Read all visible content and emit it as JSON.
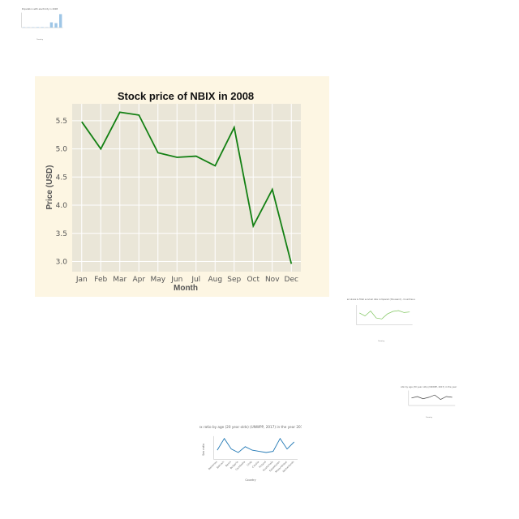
{
  "main_chart": {
    "chart_data": {
      "type": "line",
      "title": "Stock price of NBIX in 2008",
      "xlabel": "Month",
      "ylabel": "Price (USD)",
      "categories": [
        "Jan",
        "Feb",
        "Mar",
        "Apr",
        "May",
        "Jun",
        "Jul",
        "Aug",
        "Sep",
        "Oct",
        "Nov",
        "Dec"
      ],
      "series": [
        {
          "values": [
            5.48,
            5.0,
            5.65,
            5.6,
            4.93,
            4.85,
            4.87,
            4.7,
            5.38,
            3.63,
            4.28,
            2.96
          ]
        }
      ],
      "yticks": [
        3.0,
        3.5,
        4.0,
        4.5,
        5.0,
        5.5
      ],
      "ytick_labels": [
        "3.0",
        "3.5",
        "4.0",
        "4.5",
        "5.0",
        "5.5"
      ],
      "ylim": [
        2.82,
        5.8
      ],
      "grid": true,
      "colors": {
        "line": "#138013",
        "plot_bg": "#eae6d8",
        "panel_bg": "#fdf6e3",
        "grid": "#ffffff"
      }
    }
  },
  "thumbnails": [
    {
      "id": "thumb-1",
      "chart_data": {
        "type": "bar",
        "title": "Population with electricity in 2008",
        "xlabel": "Country",
        "categories": [
          "a",
          "b",
          "c",
          "d",
          "e",
          "f",
          "g",
          "h",
          "i"
        ],
        "values": [
          0.02,
          0.02,
          0.02,
          0.03,
          0.03,
          0.02,
          0.35,
          0.3,
          0.9
        ],
        "ylim": [
          0,
          1
        ],
        "colors": {
          "bar": "#9ec6e6"
        }
      }
    },
    {
      "id": "thumb-2",
      "chart_data": {
        "type": "line",
        "title": "Between 1995 - 2009 Tuberculosis & Total survival rate compared (thousand) - Countries specified on the year 2009",
        "xlabel": "Country",
        "categories": [
          "a",
          "b",
          "c",
          "d",
          "e",
          "f",
          "g",
          "h",
          "i",
          "j"
        ],
        "values": [
          0.6,
          0.45,
          0.7,
          0.35,
          0.3,
          0.55,
          0.68,
          0.72,
          0.62,
          0.65
        ],
        "ylim": [
          0,
          1
        ],
        "colors": {
          "line": "#7cc45a"
        }
      }
    },
    {
      "id": "thumb-3",
      "chart_data": {
        "type": "line",
        "title": "Sex ratio by age (30 year olds) (UNWPP, 2017) in the year 1990",
        "xlabel": "Country",
        "categories": [
          "a",
          "b",
          "c",
          "d",
          "e",
          "f",
          "g",
          "h"
        ],
        "values": [
          0.5,
          0.6,
          0.45,
          0.55,
          0.7,
          0.4,
          0.6,
          0.55
        ],
        "ylim": [
          0,
          1
        ],
        "colors": {
          "line": "#444444"
        }
      }
    },
    {
      "id": "thumb-4",
      "chart_data": {
        "type": "line",
        "title": "Sex ratio by age (20 year olds) (UNWPP, 2017) in the year 2015",
        "xlabel": "Country",
        "ylabel": "Sex ratio",
        "categories": [
          "Bahamas",
          "Bahrain",
          "Benin",
          "Bulgaria",
          "Cambodia",
          "Chile",
          "Croatia",
          "Finland",
          "Guatemala",
          "Kazakhstan",
          "Mozambique",
          "Netherlands"
        ],
        "values": [
          103,
          113,
          104,
          101,
          106,
          103,
          102,
          101,
          102,
          113,
          104,
          110
        ],
        "ylim": [
          95,
          115
        ],
        "colors": {
          "line": "#1f77b4"
        }
      }
    }
  ]
}
